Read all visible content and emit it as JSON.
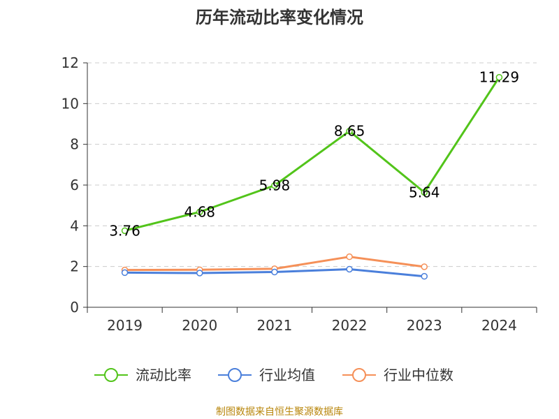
{
  "chart_data": {
    "type": "line",
    "title": "历年流动比率变化情况",
    "categories": [
      "2019",
      "2020",
      "2021",
      "2022",
      "2023",
      "2024"
    ],
    "ylim": [
      0,
      12
    ],
    "yticks": [
      0,
      2,
      4,
      6,
      8,
      10,
      12
    ],
    "grid": true,
    "legend_position": "bottom",
    "series": [
      {
        "name": "流动比率",
        "color": "#52c41a",
        "values": [
          3.76,
          4.68,
          5.98,
          8.65,
          5.64,
          11.29
        ],
        "show_labels": true
      },
      {
        "name": "行业均值",
        "color": "#4a7fdb",
        "values": [
          1.7,
          1.68,
          1.73,
          1.87,
          1.52,
          null
        ],
        "show_labels": false
      },
      {
        "name": "行业中位数",
        "color": "#f59058",
        "values": [
          1.83,
          1.84,
          1.89,
          2.48,
          1.99,
          null
        ],
        "show_labels": false
      }
    ]
  },
  "source_text": "制图数据来自恒生聚源数据库"
}
